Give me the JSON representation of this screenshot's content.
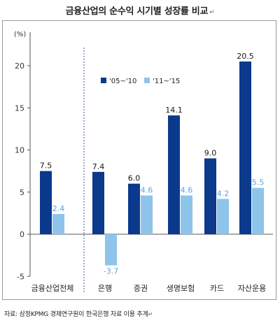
{
  "title": "금융산업의 순수익 시기별 성장률 비교",
  "source": "자료: 삼정KPMG 경제연구원이 한국은행 자료 이용 추계",
  "chart_data": {
    "type": "bar",
    "categories": [
      "금융산업전체",
      "은행",
      "증권",
      "생명보험",
      "카드",
      "자산운용"
    ],
    "series": [
      {
        "name": "'05~'10",
        "values": [
          7.5,
          7.4,
          6.0,
          14.1,
          9.0,
          20.5
        ],
        "labels": [
          "7.5",
          "7.4",
          "6.0",
          "14.1",
          "9.0",
          "20.5"
        ],
        "color": "#0b3a8c"
      },
      {
        "name": "'11~'15",
        "values": [
          2.4,
          -3.7,
          4.6,
          4.6,
          4.2,
          5.5
        ],
        "labels": [
          "2.4",
          "-3.7",
          "4.6",
          "4.6",
          "4.2",
          "5.5"
        ],
        "color": "#8ec4ea"
      }
    ],
    "y_unit": "(%)",
    "ylim": [
      -5,
      20
    ],
    "yticks": [
      "-5",
      "0",
      "5",
      "10",
      "15",
      "20"
    ],
    "legend_position": "top-center",
    "separator_after_category": "금융산업전체",
    "grid": false
  }
}
